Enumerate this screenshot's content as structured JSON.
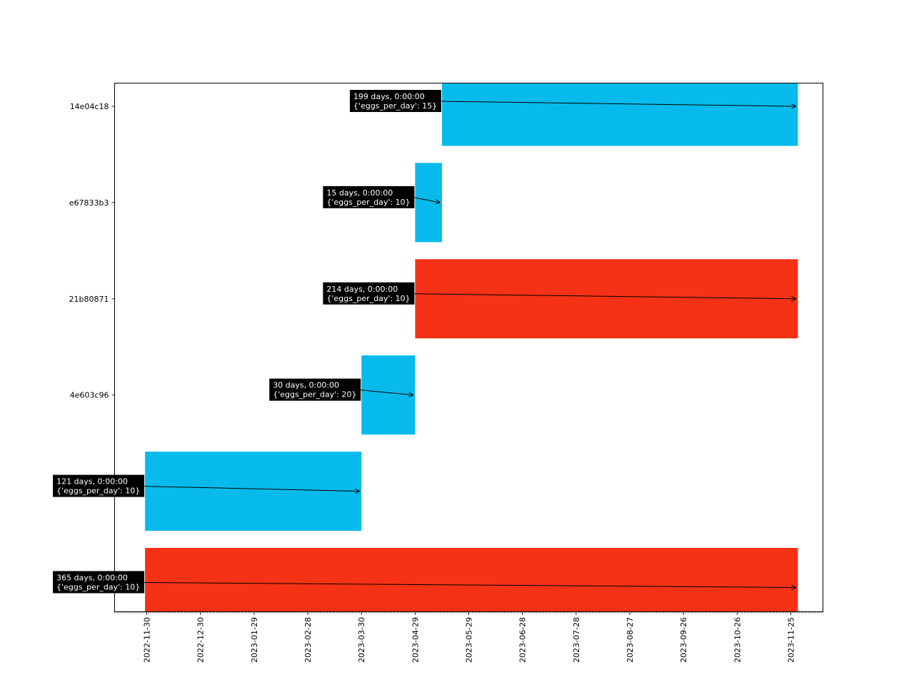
{
  "chart_data": {
    "type": "gantt",
    "title": "",
    "xlabel": "",
    "ylabel": "",
    "x_axis": "date",
    "xlim": [
      "2022-11-12",
      "2023-12-13"
    ],
    "x_ticks": [
      "2022-11-30",
      "2022-12-30",
      "2023-01-29",
      "2023-02-28",
      "2023-03-30",
      "2023-04-29",
      "2023-05-29",
      "2023-06-28",
      "2023-07-28",
      "2023-08-27",
      "2023-09-26",
      "2023-10-26",
      "2023-11-25"
    ],
    "y_categories": [
      "14e04c18",
      "e67833b3",
      "21b80871",
      "4e603c96",
      "",
      ""
    ],
    "grid": false,
    "colors": {
      "blue": "#06bbec",
      "red": "#f53215"
    },
    "bars": [
      {
        "row": 0,
        "start": "2023-05-14",
        "end": "2023-11-29",
        "color": "blue",
        "label_line1": "199 days, 0:00:00",
        "label_line2": "{'eggs_per_day': 15}"
      },
      {
        "row": 1,
        "start": "2023-04-29",
        "end": "2023-05-14",
        "color": "blue",
        "label_line1": "15 days, 0:00:00",
        "label_line2": "{'eggs_per_day': 10}"
      },
      {
        "row": 2,
        "start": "2023-04-29",
        "end": "2023-11-29",
        "color": "red",
        "label_line1": "214 days, 0:00:00",
        "label_line2": "{'eggs_per_day': 10}"
      },
      {
        "row": 3,
        "start": "2023-03-30",
        "end": "2023-04-29",
        "color": "blue",
        "label_line1": "30 days, 0:00:00",
        "label_line2": "{'eggs_per_day': 20}"
      },
      {
        "row": 4,
        "start": "2022-11-29",
        "end": "2023-03-30",
        "color": "blue",
        "label_line1": "121 days, 0:00:00",
        "label_line2": "{'eggs_per_day': 10}"
      },
      {
        "row": 5,
        "start": "2022-11-29",
        "end": "2023-11-29",
        "color": "red",
        "label_line1": "365 days, 0:00:00",
        "label_line2": "{'eggs_per_day': 10}"
      }
    ]
  }
}
